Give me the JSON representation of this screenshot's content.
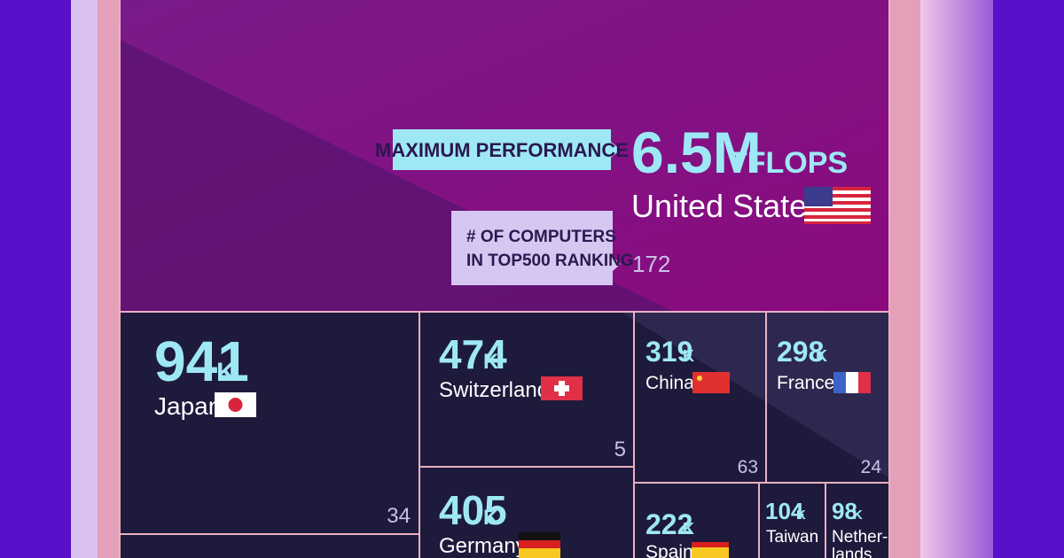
{
  "highlight": {
    "performance_label": "MAXIMUM PERFORMANCE",
    "value": "6.5M",
    "unit": "TFLOPS",
    "country": "United States",
    "computers_label": [
      "# OF COMPUTERS",
      "IN TOP500 RANKING"
    ],
    "computers": "172"
  },
  "cells": [
    {
      "value": "941",
      "unit": "K",
      "country": "Japan",
      "computers": "34"
    },
    {
      "value": "474",
      "unit": "K",
      "country": "Switzerland",
      "computers": "5"
    },
    {
      "value": "319",
      "unit": "K",
      "country": "China",
      "computers": "63"
    },
    {
      "value": "298",
      "unit": "K",
      "country": "France",
      "computers": "24"
    },
    {
      "value": "405",
      "unit": "K",
      "country": "Germany"
    },
    {
      "value": "222",
      "unit": "K",
      "country": "Spain"
    },
    {
      "value": "104",
      "unit": "K",
      "country": "Taiwan"
    },
    {
      "value": "98",
      "unit": "K",
      "country": [
        "Nether-",
        "lands"
      ]
    }
  ]
}
